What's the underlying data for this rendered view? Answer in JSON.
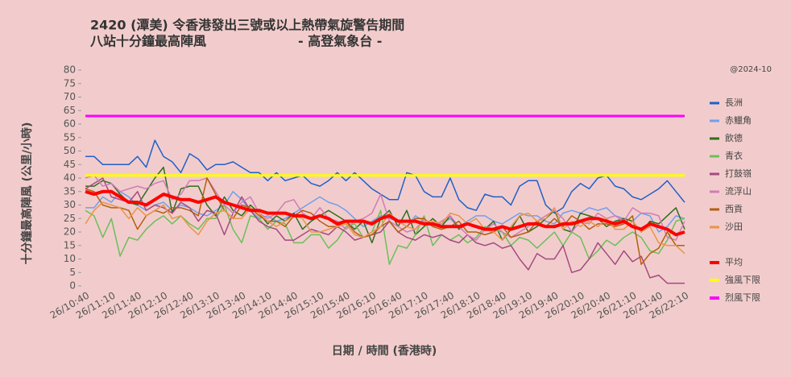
{
  "chart_data": {
    "type": "line",
    "title": "2420 (潭美)   令香港發出三號或以上熱帶氣旋警告期間",
    "subtitle": "八站十分鐘最高陣風",
    "source": "- 高登氣象台 -",
    "stamp": "@2024-10",
    "x_label": "日期 / 時間 (香港時)",
    "y_label": "十分鐘最高陣風 (公里/小時)",
    "categories": [
      "26/10:40",
      null,
      null,
      "26/11:10",
      null,
      null,
      "26/11:40",
      null,
      null,
      "26/12:10",
      null,
      null,
      "26/12:40",
      null,
      null,
      "26/13:10",
      null,
      null,
      "26/13:40",
      null,
      null,
      "26/14:10",
      null,
      null,
      "26/14:40",
      null,
      null,
      "26/15:10",
      null,
      null,
      "26/15:40",
      null,
      null,
      "26/16:10",
      null,
      null,
      "26/16:40",
      null,
      null,
      "26/17:10",
      null,
      null,
      "26/17:40",
      null,
      null,
      "26/18:10",
      null,
      null,
      "26/18:40",
      null,
      null,
      "26/19:10",
      null,
      null,
      "26/19:40",
      null,
      null,
      "26/20:10",
      null,
      null,
      "26/20:40",
      null,
      null,
      "26/21:10",
      null,
      null,
      "26/21:40",
      null,
      null,
      "26/22:10"
    ],
    "ylim": [
      0,
      80
    ],
    "yticks": [
      0,
      5,
      10,
      15,
      20,
      25,
      30,
      35,
      40,
      45,
      50,
      55,
      60,
      65,
      70,
      75,
      80
    ],
    "grid": false,
    "series": [
      {
        "name": "長洲",
        "color": "#2060c8",
        "values": [
          48,
          48,
          45,
          45,
          45,
          45,
          48,
          44,
          54,
          48,
          46,
          42,
          49,
          47,
          43,
          45,
          45,
          46,
          44,
          42,
          42,
          39,
          42,
          39,
          40,
          41,
          38,
          37,
          39,
          42,
          39,
          42,
          39,
          36,
          34,
          32,
          32,
          42,
          41,
          35,
          33,
          33,
          40,
          32,
          29,
          28,
          34,
          33,
          33,
          30,
          37,
          39,
          39,
          30,
          27,
          29,
          35,
          38,
          36,
          40,
          41,
          37,
          36,
          33,
          32,
          34,
          36,
          39,
          35,
          31
        ]
      },
      {
        "name": "赤鱲角",
        "color": "#6fa0ee",
        "values": [
          29,
          29,
          33,
          31,
          35,
          33,
          30,
          28,
          30,
          31,
          28,
          30,
          29,
          27,
          26,
          28,
          30,
          35,
          32,
          28,
          25,
          26,
          24,
          25,
          27,
          29,
          31,
          33,
          31,
          30,
          28,
          25,
          22,
          24,
          26,
          25,
          24,
          22,
          26,
          24,
          22,
          23,
          25,
          22,
          24,
          26,
          26,
          24,
          23,
          25,
          27,
          26,
          26,
          24,
          23,
          27,
          28,
          27,
          29,
          28,
          29,
          26,
          25,
          24,
          27,
          26,
          20,
          22,
          26,
          25
        ]
      },
      {
        "name": "飲德",
        "color": "#2e6e1e",
        "values": [
          37,
          37,
          39,
          38,
          34,
          31,
          30,
          35,
          40,
          44,
          27,
          36,
          37,
          37,
          30,
          26,
          33,
          28,
          26,
          30,
          27,
          23,
          26,
          24,
          27,
          21,
          24,
          26,
          28,
          26,
          24,
          21,
          24,
          16,
          25,
          28,
          22,
          28,
          19,
          22,
          25,
          22,
          26,
          21,
          23,
          22,
          21,
          24,
          17,
          21,
          26,
          20,
          22,
          25,
          28,
          21,
          20,
          27,
          26,
          25,
          22,
          24,
          25,
          24,
          20,
          24,
          23,
          26,
          29,
          21
        ]
      },
      {
        "name": "青衣",
        "color": "#6bbf59",
        "values": [
          28,
          26,
          18,
          25,
          11,
          18,
          17,
          21,
          24,
          26,
          23,
          26,
          23,
          21,
          25,
          25,
          30,
          21,
          16,
          26,
          25,
          21,
          24,
          23,
          16,
          16,
          19,
          19,
          14,
          17,
          22,
          23,
          18,
          20,
          28,
          8,
          15,
          14,
          19,
          26,
          15,
          19,
          17,
          19,
          16,
          18,
          22,
          21,
          20,
          15,
          18,
          17,
          14,
          17,
          20,
          15,
          20,
          18,
          10,
          13,
          17,
          15,
          18,
          20,
          18,
          13,
          12,
          17,
          24,
          25
        ]
      },
      {
        "name": "打鼓嶺",
        "color": "#a44a80",
        "values": [
          36,
          38,
          40,
          33,
          32,
          31,
          35,
          28,
          30,
          29,
          27,
          31,
          29,
          24,
          28,
          27,
          19,
          27,
          33,
          28,
          24,
          22,
          21,
          17,
          17,
          19,
          21,
          20,
          19,
          22,
          20,
          17,
          18,
          19,
          20,
          24,
          20,
          18,
          17,
          19,
          18,
          19,
          17,
          16,
          19,
          16,
          15,
          16,
          14,
          15,
          10,
          6,
          12,
          10,
          10,
          15,
          5,
          6,
          10,
          16,
          12,
          8,
          13,
          9,
          11,
          3,
          4,
          1,
          1,
          1
        ]
      },
      {
        "name": "流浮山",
        "color": "#d07cb8",
        "values": [
          40,
          41,
          37,
          38,
          35,
          36,
          37,
          36,
          38,
          39,
          32,
          34,
          39,
          39,
          40,
          35,
          30,
          27,
          31,
          33,
          27,
          25,
          27,
          31,
          32,
          27,
          25,
          29,
          25,
          24,
          21,
          24,
          25,
          27,
          34,
          24,
          22,
          20,
          21,
          25,
          22,
          24,
          26,
          22,
          19,
          17,
          21,
          23,
          20,
          18,
          20,
          22,
          24,
          26,
          28,
          25,
          20,
          24,
          23,
          27,
          25,
          26,
          24,
          29,
          27,
          27,
          26,
          18,
          17,
          24
        ]
      },
      {
        "name": "西貢",
        "color": "#b35f10",
        "values": [
          36,
          35,
          30,
          29,
          29,
          28,
          21,
          26,
          28,
          27,
          29,
          29,
          28,
          26,
          40,
          34,
          28,
          25,
          30,
          29,
          26,
          24,
          24,
          22,
          26,
          28,
          27,
          24,
          22,
          22,
          24,
          20,
          18,
          19,
          22,
          24,
          20,
          22,
          25,
          25,
          22,
          21,
          22,
          24,
          20,
          20,
          19,
          20,
          22,
          18,
          19,
          20,
          24,
          22,
          25,
          22,
          26,
          24,
          21,
          23,
          23,
          22,
          23,
          26,
          8,
          12,
          14,
          20,
          15,
          15
        ]
      },
      {
        "name": "沙田",
        "color": "#e8954a",
        "values": [
          23,
          28,
          31,
          30,
          29,
          25,
          29,
          26,
          28,
          30,
          25,
          26,
          22,
          19,
          24,
          27,
          28,
          25,
          25,
          29,
          27,
          24,
          22,
          24,
          26,
          25,
          20,
          20,
          21,
          22,
          23,
          19,
          18,
          20,
          22,
          27,
          24,
          22,
          21,
          24,
          24,
          23,
          27,
          26,
          23,
          25,
          21,
          20,
          17,
          22,
          26,
          27,
          24,
          25,
          29,
          21,
          24,
          22,
          24,
          22,
          25,
          21,
          21,
          24,
          20,
          22,
          16,
          15,
          15,
          12
        ]
      },
      {
        "name": "平均",
        "color": "#ff0000",
        "values": [
          35,
          34,
          35,
          35,
          33,
          31,
          31,
          30,
          32,
          34,
          33,
          32,
          32,
          31,
          32,
          33,
          31,
          30,
          29,
          28,
          28,
          27,
          27,
          27,
          26,
          26,
          25,
          26,
          25,
          23,
          24,
          24,
          24,
          23,
          25,
          26,
          24,
          24,
          24,
          23,
          23,
          22,
          22,
          22,
          23,
          22,
          21,
          21,
          22,
          21,
          22,
          23,
          23,
          22,
          22,
          23,
          23,
          24,
          25,
          25,
          24,
          23,
          24,
          22,
          21,
          23,
          22,
          21,
          19,
          20
        ]
      },
      {
        "name": "強風下限",
        "color": "#ffff00",
        "values": [
          41,
          41,
          41,
          41,
          41,
          41,
          41,
          41,
          41,
          41,
          41,
          41,
          41,
          41,
          41,
          41,
          41,
          41,
          41,
          41,
          41,
          41,
          41,
          41,
          41,
          41,
          41,
          41,
          41,
          41,
          41,
          41,
          41,
          41,
          41,
          41,
          41,
          41,
          41,
          41,
          41,
          41,
          41,
          41,
          41,
          41,
          41,
          41,
          41,
          41,
          41,
          41,
          41,
          41,
          41,
          41,
          41,
          41,
          41,
          41,
          41,
          41,
          41,
          41,
          41,
          41,
          41,
          41,
          41,
          41
        ]
      },
      {
        "name": "烈風下限",
        "color": "#ff00ff",
        "values": [
          63,
          63,
          63,
          63,
          63,
          63,
          63,
          63,
          63,
          63,
          63,
          63,
          63,
          63,
          63,
          63,
          63,
          63,
          63,
          63,
          63,
          63,
          63,
          63,
          63,
          63,
          63,
          63,
          63,
          63,
          63,
          63,
          63,
          63,
          63,
          63,
          63,
          63,
          63,
          63,
          63,
          63,
          63,
          63,
          63,
          63,
          63,
          63,
          63,
          63,
          63,
          63,
          63,
          63,
          63,
          63,
          63,
          63,
          63,
          63,
          63,
          63,
          63,
          63,
          63,
          63,
          63,
          63,
          63,
          63
        ]
      }
    ]
  }
}
